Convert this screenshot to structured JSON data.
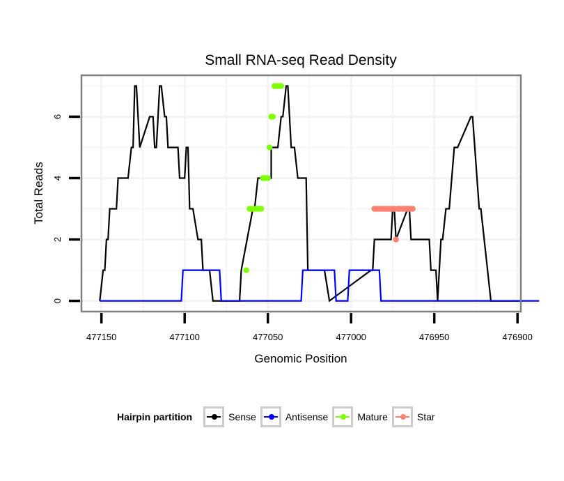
{
  "chart_data": {
    "type": "line",
    "title": "Small RNA-seq Read Density",
    "xlabel": "Genomic Position",
    "ylabel": "Total Reads",
    "x_reversed": true,
    "xlim": [
      477162,
      476898
    ],
    "ylim": [
      -0.35,
      7.35
    ],
    "x_ticks": [
      477150,
      477100,
      477050,
      477000,
      476950,
      476900
    ],
    "x_tick_labels": [
      "477150",
      "477100",
      "477050",
      "477000",
      "476950",
      "476900"
    ],
    "y_ticks": [
      0,
      2,
      4,
      6
    ],
    "y_tick_labels": [
      "0",
      "2",
      "4",
      "6"
    ],
    "grid": true,
    "legend": {
      "title": "Hairpin partition",
      "position": "bottom",
      "entries": [
        {
          "name": "Sense",
          "color": "#000000"
        },
        {
          "name": "Antisense",
          "color": "#0000ff"
        },
        {
          "name": "Mature",
          "color": "#7fff00"
        },
        {
          "name": "Star",
          "color": "#fa8072"
        }
      ]
    },
    "series": [
      {
        "name": "Sense",
        "color": "#000000",
        "style": "line",
        "x": [
          477151,
          477149,
          477148,
          477147,
          477146,
          477145,
          477141,
          477140,
          477134,
          477132,
          477131,
          477130,
          477129,
          477127,
          477121,
          477119,
          477118,
          477117,
          477115,
          477114,
          477112,
          477111,
          477110,
          477104,
          477103,
          477100,
          477099,
          477098,
          477097,
          477095,
          477092,
          477090,
          477089,
          477085,
          477083,
          477067,
          477066,
          477059,
          477058,
          477056,
          477048,
          477048,
          477044,
          477042,
          477041,
          477039,
          477038,
          477036,
          477034,
          477032,
          477027,
          477026,
          477025,
          477016,
          477013,
          476988,
          476987,
          476986,
          476976,
          476975,
          476974,
          476973,
          476966,
          476965,
          476964,
          476953,
          476952,
          476949,
          476948,
          476946,
          476945,
          476943,
          476941,
          476938,
          476936,
          476928,
          476927,
          476923,
          476922,
          476916,
          476913,
          476902,
          476900,
          476897
        ],
        "y": [
          0,
          1,
          1,
          2,
          2,
          3,
          3,
          4,
          4,
          5,
          5,
          7,
          7,
          5,
          6,
          6,
          5,
          5,
          7,
          7,
          6,
          6,
          5,
          5,
          4,
          4,
          5,
          5,
          3,
          3,
          2,
          2,
          1,
          1,
          0,
          0,
          1,
          3,
          3,
          4,
          4,
          5,
          5,
          6,
          6,
          7,
          7,
          5,
          5,
          4,
          4,
          1,
          1,
          1,
          0,
          1,
          1,
          2,
          2,
          3,
          3,
          2,
          3,
          3,
          2,
          2,
          1,
          1,
          0,
          2,
          2,
          3,
          3,
          5,
          5,
          6,
          6,
          3,
          3,
          0,
          0,
          0,
          0,
          0
        ]
      },
      {
        "name": "Antisense",
        "color": "#0000ff",
        "style": "line",
        "x": [
          477151,
          477102,
          477101,
          477079,
          477078,
          477030,
          477029,
          477010,
          477009,
          477002,
          477001,
          476983,
          476982,
          476887
        ],
        "y": [
          0,
          0,
          1,
          1,
          0,
          0,
          1,
          1,
          0,
          0,
          1,
          1,
          0,
          0
        ]
      },
      {
        "name": "Mature",
        "color": "#7fff00",
        "style": "points",
        "x": [
          477063,
          477061,
          477060,
          477059,
          477058,
          477057,
          477056,
          477055,
          477054,
          477053,
          477052,
          477051,
          477050,
          477049,
          477048,
          477047,
          477046,
          477045,
          477044,
          477043,
          477042
        ],
        "y": [
          1,
          3,
          3,
          3,
          3,
          3,
          3,
          3,
          3,
          4,
          4,
          4,
          4,
          5,
          6,
          6,
          7,
          7,
          7,
          7,
          7
        ]
      },
      {
        "name": "Star",
        "color": "#fa8072",
        "style": "points",
        "x": [
          476986,
          476985,
          476984,
          476983,
          476982,
          476981,
          476980,
          476979,
          476978,
          476977,
          476976,
          476975,
          476974,
          476973,
          476972,
          476971,
          476970,
          476969,
          476968,
          476967,
          476966,
          476965,
          476964,
          476963
        ],
        "y": [
          3,
          3,
          3,
          3,
          3,
          3,
          3,
          3,
          3,
          3,
          3,
          3,
          3,
          2,
          3,
          3,
          3,
          3,
          3,
          3,
          3,
          3,
          3,
          3
        ]
      }
    ]
  }
}
